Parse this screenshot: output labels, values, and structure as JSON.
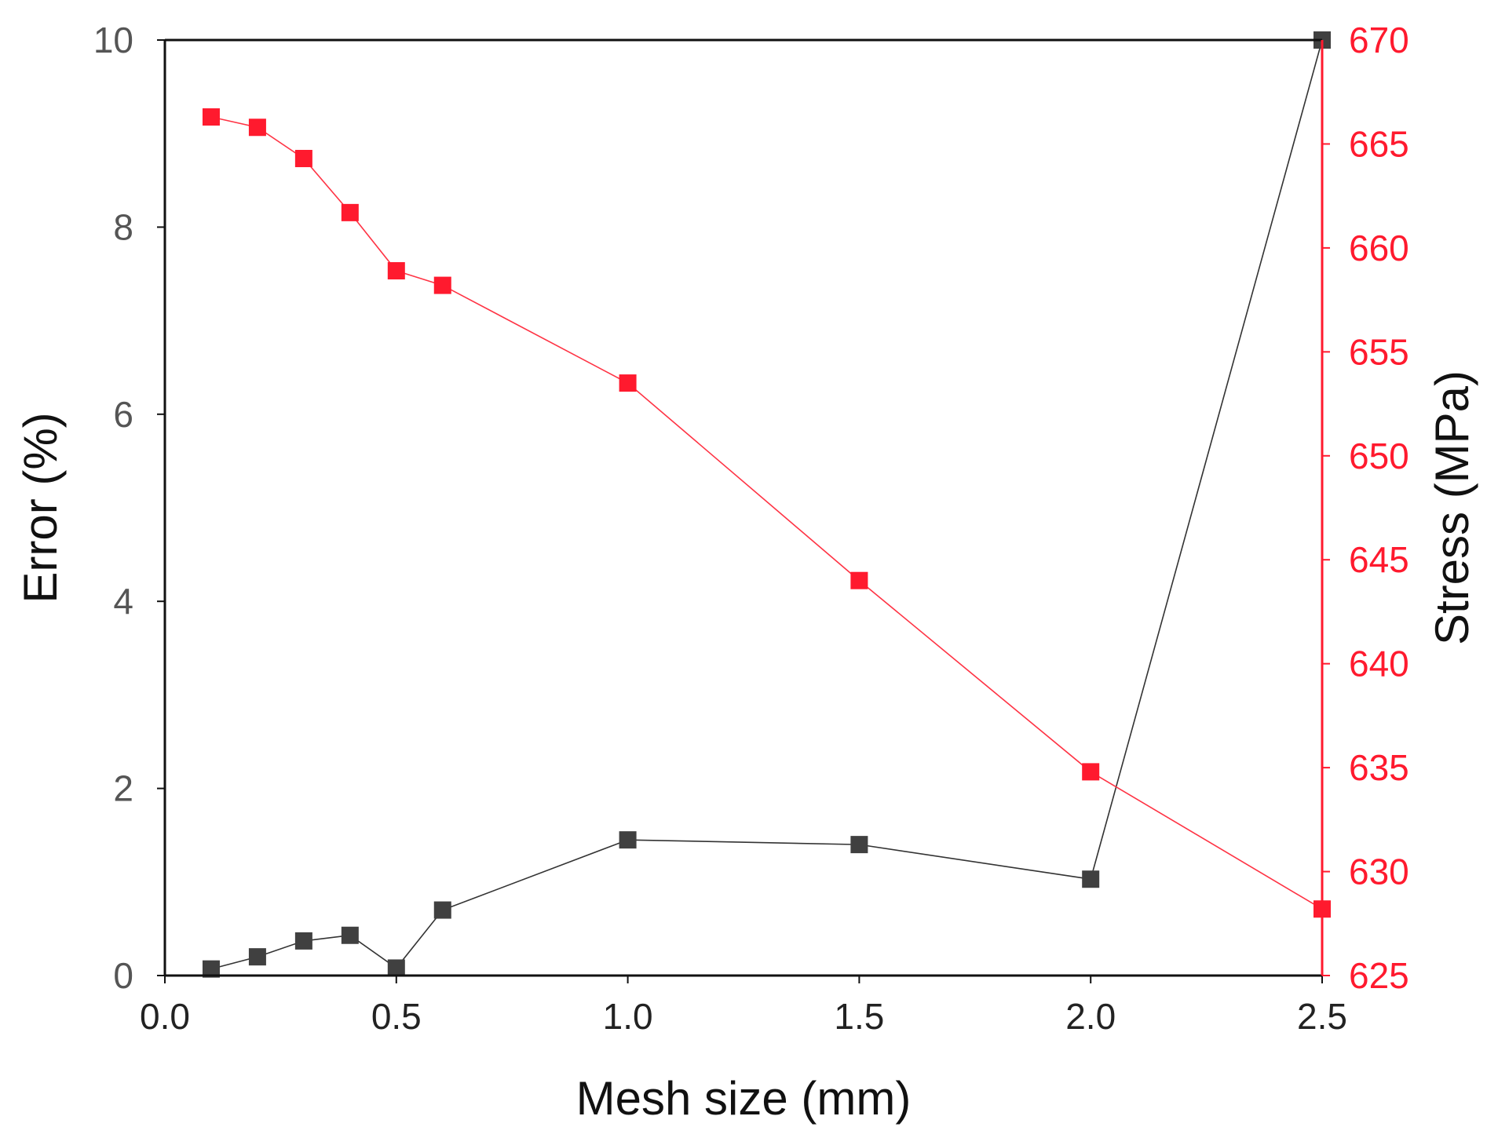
{
  "chart_data": {
    "type": "line",
    "title": "",
    "xlabel": "Mesh size (mm)",
    "ylabel_left": "Error (%)",
    "ylabel_right": "Stress (MPa)",
    "xlim": [
      0.0,
      2.5
    ],
    "ylim_left": [
      0,
      10
    ],
    "ylim_right": [
      625,
      670
    ],
    "x_ticks": [
      "0.0",
      "0.5",
      "1.0",
      "1.5",
      "2.0",
      "2.5"
    ],
    "y_left_ticks": [
      "0",
      "2",
      "4",
      "6",
      "8",
      "10"
    ],
    "y_right_ticks": [
      "625",
      "630",
      "635",
      "640",
      "645",
      "650",
      "655",
      "660",
      "665",
      "670"
    ],
    "grid": false,
    "legend": "none",
    "colors": {
      "error": "#404040",
      "stress": "#ff1a2e",
      "error_line": "#333333",
      "stress_line": "#ff3344"
    },
    "series": [
      {
        "name": "Error",
        "axis": "left",
        "x": [
          0.1,
          0.2,
          0.3,
          0.4,
          0.5,
          0.6,
          1.0,
          1.5,
          2.0,
          2.5
        ],
        "values": [
          0.07,
          0.2,
          0.37,
          0.43,
          0.08,
          0.7,
          1.45,
          1.4,
          1.03,
          10.0
        ]
      },
      {
        "name": "Stress",
        "axis": "right",
        "x": [
          0.1,
          0.2,
          0.3,
          0.4,
          0.5,
          0.6,
          1.0,
          1.5,
          2.0,
          2.5
        ],
        "values": [
          666.3,
          665.8,
          664.3,
          661.7,
          658.9,
          658.2,
          653.5,
          644.0,
          634.8,
          628.2
        ]
      }
    ]
  }
}
